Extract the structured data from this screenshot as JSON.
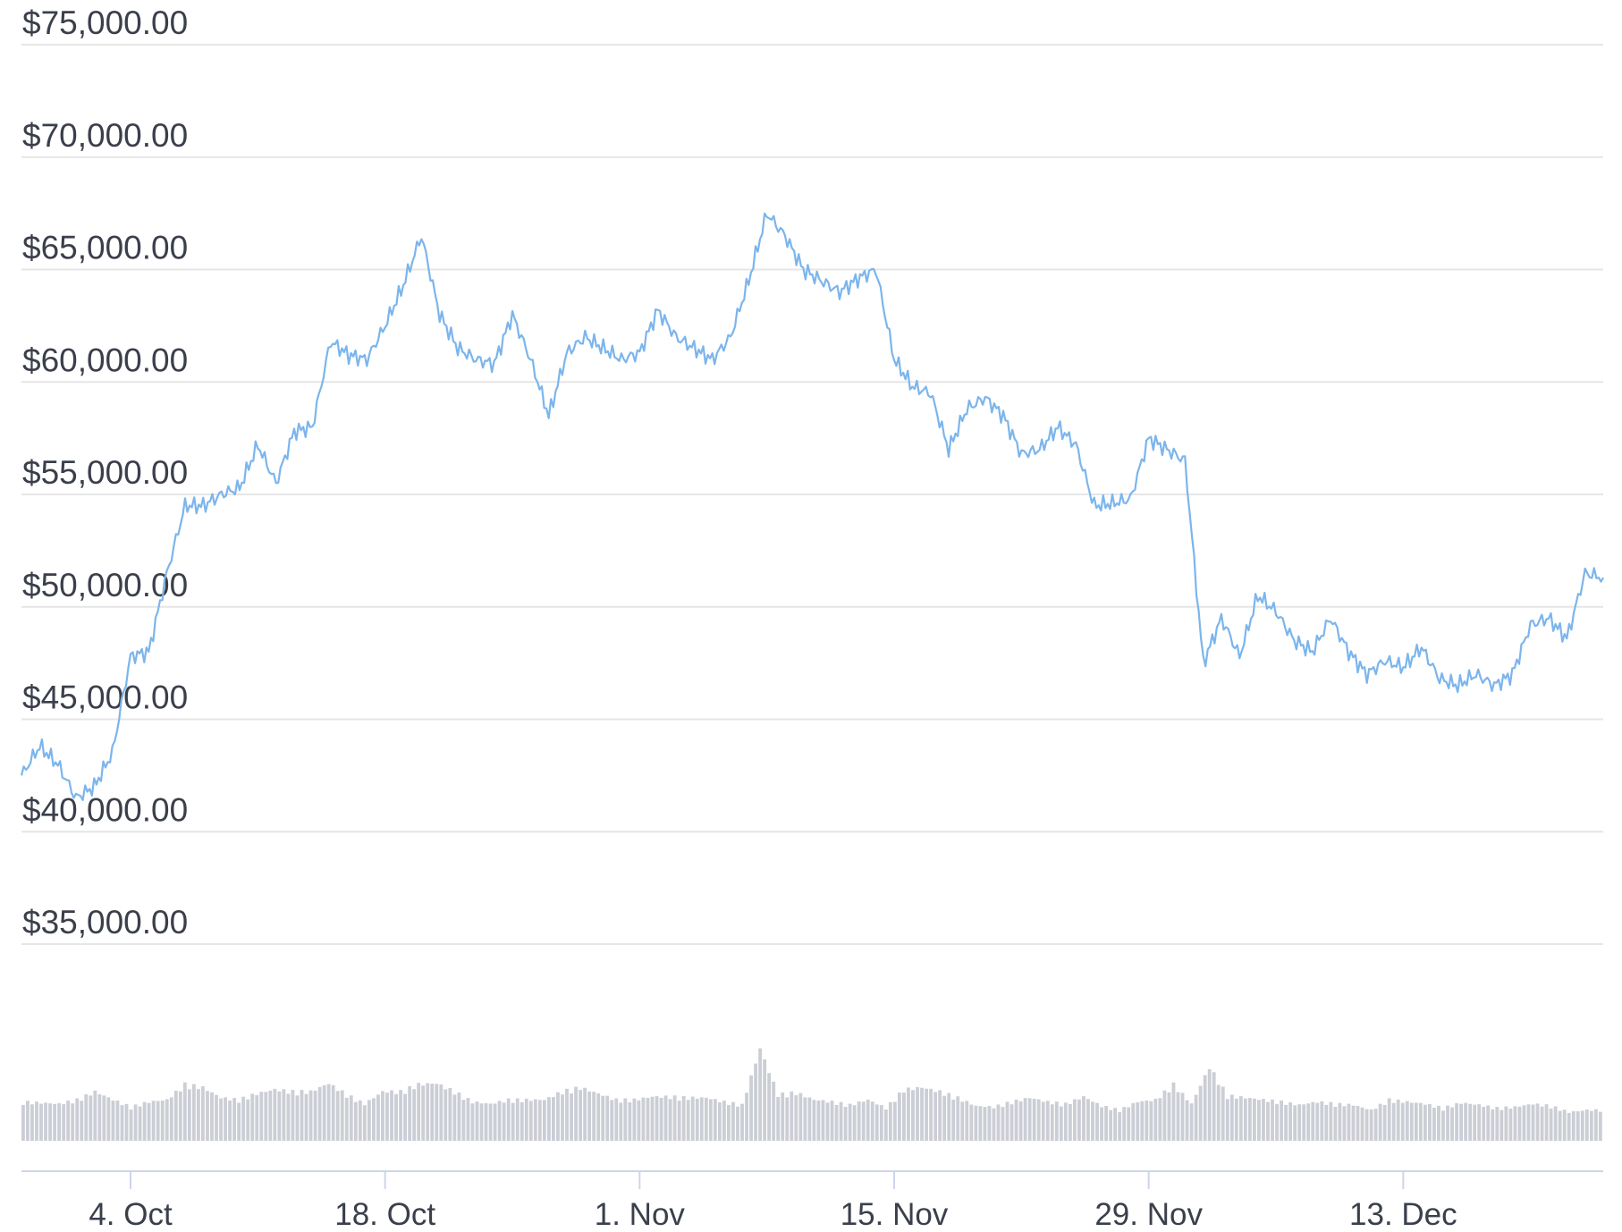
{
  "chart_data": [
    {
      "type": "line",
      "title": "",
      "xlabel": "",
      "ylabel": "",
      "x_range": [
        "2021-09-28",
        "2021-12-24"
      ],
      "ylim": [
        35000,
        75000
      ],
      "y_tick_values": [
        35000,
        40000,
        45000,
        50000,
        55000,
        60000,
        65000,
        70000,
        75000
      ],
      "y_tick_labels": [
        "$35,000.00",
        "$40,000.00",
        "$45,000.00",
        "$50,000.00",
        "$55,000.00",
        "$60,000.00",
        "$65,000.00",
        "$70,000.00",
        "$75,000.00"
      ],
      "x_ticks": [
        {
          "date": "2021-10-04",
          "label": "4. Oct"
        },
        {
          "date": "2021-10-18",
          "label": "18. Oct"
        },
        {
          "date": "2021-11-01",
          "label": "1. Nov"
        },
        {
          "date": "2021-11-15",
          "label": "15. Nov"
        },
        {
          "date": "2021-11-29",
          "label": "29. Nov"
        },
        {
          "date": "2021-12-13",
          "label": "13. Dec"
        }
      ],
      "grid": true,
      "legend": "none",
      "line_color": "#7cb5ec",
      "series": [
        {
          "x": [
            "2021-09-28",
            "2021-09-29",
            "2021-09-30",
            "2021-10-01",
            "2021-10-02",
            "2021-10-03",
            "2021-10-04",
            "2021-10-05",
            "2021-10-06",
            "2021-10-07",
            "2021-10-08",
            "2021-10-09",
            "2021-10-10",
            "2021-10-11",
            "2021-10-12",
            "2021-10-13",
            "2021-10-14",
            "2021-10-15",
            "2021-10-16",
            "2021-10-17",
            "2021-10-18",
            "2021-10-19",
            "2021-10-20",
            "2021-10-21",
            "2021-10-22",
            "2021-10-23",
            "2021-10-24",
            "2021-10-25",
            "2021-10-26",
            "2021-10-27",
            "2021-10-28",
            "2021-10-29",
            "2021-10-30",
            "2021-10-31",
            "2021-11-01",
            "2021-11-02",
            "2021-11-03",
            "2021-11-04",
            "2021-11-05",
            "2021-11-06",
            "2021-11-07",
            "2021-11-08",
            "2021-11-09",
            "2021-11-10",
            "2021-11-11",
            "2021-11-12",
            "2021-11-13",
            "2021-11-14",
            "2021-11-15",
            "2021-11-16",
            "2021-11-17",
            "2021-11-18",
            "2021-11-19",
            "2021-11-20",
            "2021-11-21",
            "2021-11-22",
            "2021-11-23",
            "2021-11-24",
            "2021-11-25",
            "2021-11-26",
            "2021-11-27",
            "2021-11-28",
            "2021-11-29",
            "2021-11-30",
            "2021-12-01",
            "2021-12-02",
            "2021-12-03",
            "2021-12-04",
            "2021-12-05",
            "2021-12-06",
            "2021-12-07",
            "2021-12-08",
            "2021-12-09",
            "2021-12-10",
            "2021-12-11",
            "2021-12-12",
            "2021-12-13",
            "2021-12-14",
            "2021-12-15",
            "2021-12-16",
            "2021-12-17",
            "2021-12-18",
            "2021-12-19",
            "2021-12-20",
            "2021-12-21",
            "2021-12-22",
            "2021-12-23",
            "2021-12-24"
          ],
          "values": [
            42500,
            43800,
            43000,
            41500,
            42000,
            43500,
            47800,
            48000,
            51500,
            54500,
            54500,
            55000,
            55300,
            57200,
            55500,
            57800,
            58000,
            61800,
            61200,
            61000,
            62500,
            64300,
            66500,
            63000,
            61500,
            61000,
            60800,
            63000,
            61000,
            58500,
            61300,
            62000,
            61500,
            61000,
            61300,
            63200,
            62000,
            61500,
            61000,
            62000,
            64500,
            67500,
            66500,
            65000,
            64500,
            64000,
            64600,
            65000,
            61000,
            59800,
            59500,
            57000,
            58800,
            59300,
            58500,
            56800,
            57000,
            58000,
            57200,
            54500,
            54600,
            54800,
            57500,
            57000,
            56500,
            47500,
            49500,
            47800,
            50500,
            49800,
            48500,
            48000,
            49500,
            48000,
            47000,
            47600,
            47300,
            48200,
            46800,
            46500,
            47000,
            46500,
            47000,
            49200,
            49500,
            48600,
            51500,
            51300
          ]
        }
      ],
      "volume_axis": "unlabeled",
      "volume_color": "#ccced6",
      "volume_relative": [
        0.38,
        0.37,
        0.36,
        0.4,
        0.48,
        0.4,
        0.33,
        0.38,
        0.4,
        0.55,
        0.52,
        0.42,
        0.4,
        0.46,
        0.5,
        0.48,
        0.48,
        0.56,
        0.45,
        0.36,
        0.48,
        0.48,
        0.55,
        0.56,
        0.48,
        0.38,
        0.36,
        0.4,
        0.4,
        0.4,
        0.48,
        0.52,
        0.46,
        0.4,
        0.4,
        0.43,
        0.43,
        0.42,
        0.42,
        0.38,
        0.35,
        0.9,
        0.45,
        0.47,
        0.4,
        0.38,
        0.35,
        0.4,
        0.32,
        0.5,
        0.52,
        0.48,
        0.42,
        0.34,
        0.33,
        0.38,
        0.42,
        0.38,
        0.36,
        0.43,
        0.34,
        0.3,
        0.38,
        0.4,
        0.55,
        0.36,
        0.72,
        0.44,
        0.42,
        0.4,
        0.38,
        0.35,
        0.38,
        0.36,
        0.35,
        0.3,
        0.4,
        0.38,
        0.36,
        0.32,
        0.37,
        0.35,
        0.32,
        0.33,
        0.36,
        0.34,
        0.28,
        0.3
      ]
    }
  ]
}
